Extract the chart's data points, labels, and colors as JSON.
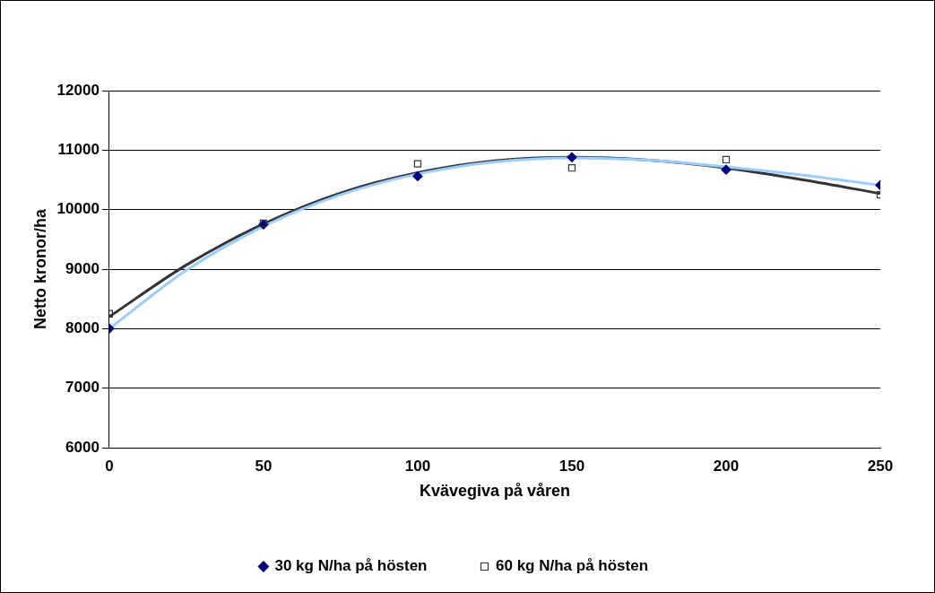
{
  "chart_data": {
    "type": "scatter",
    "xlabel": "Kvävegiva på våren",
    "ylabel": "Netto kronor/ha",
    "xlim": [
      0,
      250
    ],
    "xticks": [
      0,
      50,
      100,
      150,
      200,
      250
    ],
    "ylim": [
      6000,
      12000
    ],
    "yticks": [
      6000,
      7000,
      8000,
      9000,
      10000,
      11000,
      12000
    ],
    "grid": "y",
    "legend": "bottom",
    "x": [
      0,
      50,
      100,
      150,
      200,
      250
    ],
    "series": [
      {
        "name": "30 kg N/ha på hösten",
        "color": "#000080",
        "marker": "diamond",
        "values": [
          8000,
          9750,
          10560,
          10880,
          10670,
          10410
        ]
      },
      {
        "name": "60 kg N/ha på hösten",
        "color": "#333333",
        "marker": "square",
        "values": [
          8250,
          9770,
          10770,
          10700,
          10840,
          10250
        ]
      },
      {
        "type": "line",
        "color": "#99ccff",
        "marker": "none",
        "x": [
          0,
          25,
          50,
          75,
          100,
          125,
          150,
          175,
          200,
          225,
          250
        ],
        "values": [
          8000,
          8980,
          9720,
          10250,
          10600,
          10800,
          10870,
          10830,
          10720,
          10580,
          10410
        ]
      },
      {
        "type": "line",
        "color": "#333333",
        "marker": "none",
        "x": [
          0,
          25,
          50,
          75,
          100,
          125,
          150,
          175,
          200,
          225,
          250
        ],
        "values": [
          8200,
          9070,
          9760,
          10280,
          10620,
          10820,
          10880,
          10830,
          10700,
          10500,
          10270
        ]
      }
    ]
  }
}
